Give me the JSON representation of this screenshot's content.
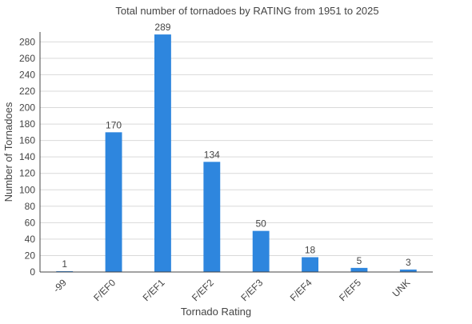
{
  "chart_data": {
    "type": "bar",
    "title": "Total number of tornadoes by RATING from 1951 to 2025",
    "xlabel": "Tornado Rating",
    "ylabel": "Number of Tornadoes",
    "categories": [
      "-99",
      "F/EF0",
      "F/EF1",
      "F/EF2",
      "F/EF3",
      "F/EF4",
      "F/EF5",
      "UNK"
    ],
    "values": [
      1,
      170,
      289,
      134,
      50,
      18,
      5,
      3
    ],
    "ylim": [
      0,
      292
    ],
    "yticks": [
      0,
      20,
      40,
      60,
      80,
      100,
      120,
      140,
      160,
      180,
      200,
      220,
      240,
      260,
      280
    ],
    "grid": true,
    "legend": "none",
    "bar_color": "#2e86de"
  }
}
